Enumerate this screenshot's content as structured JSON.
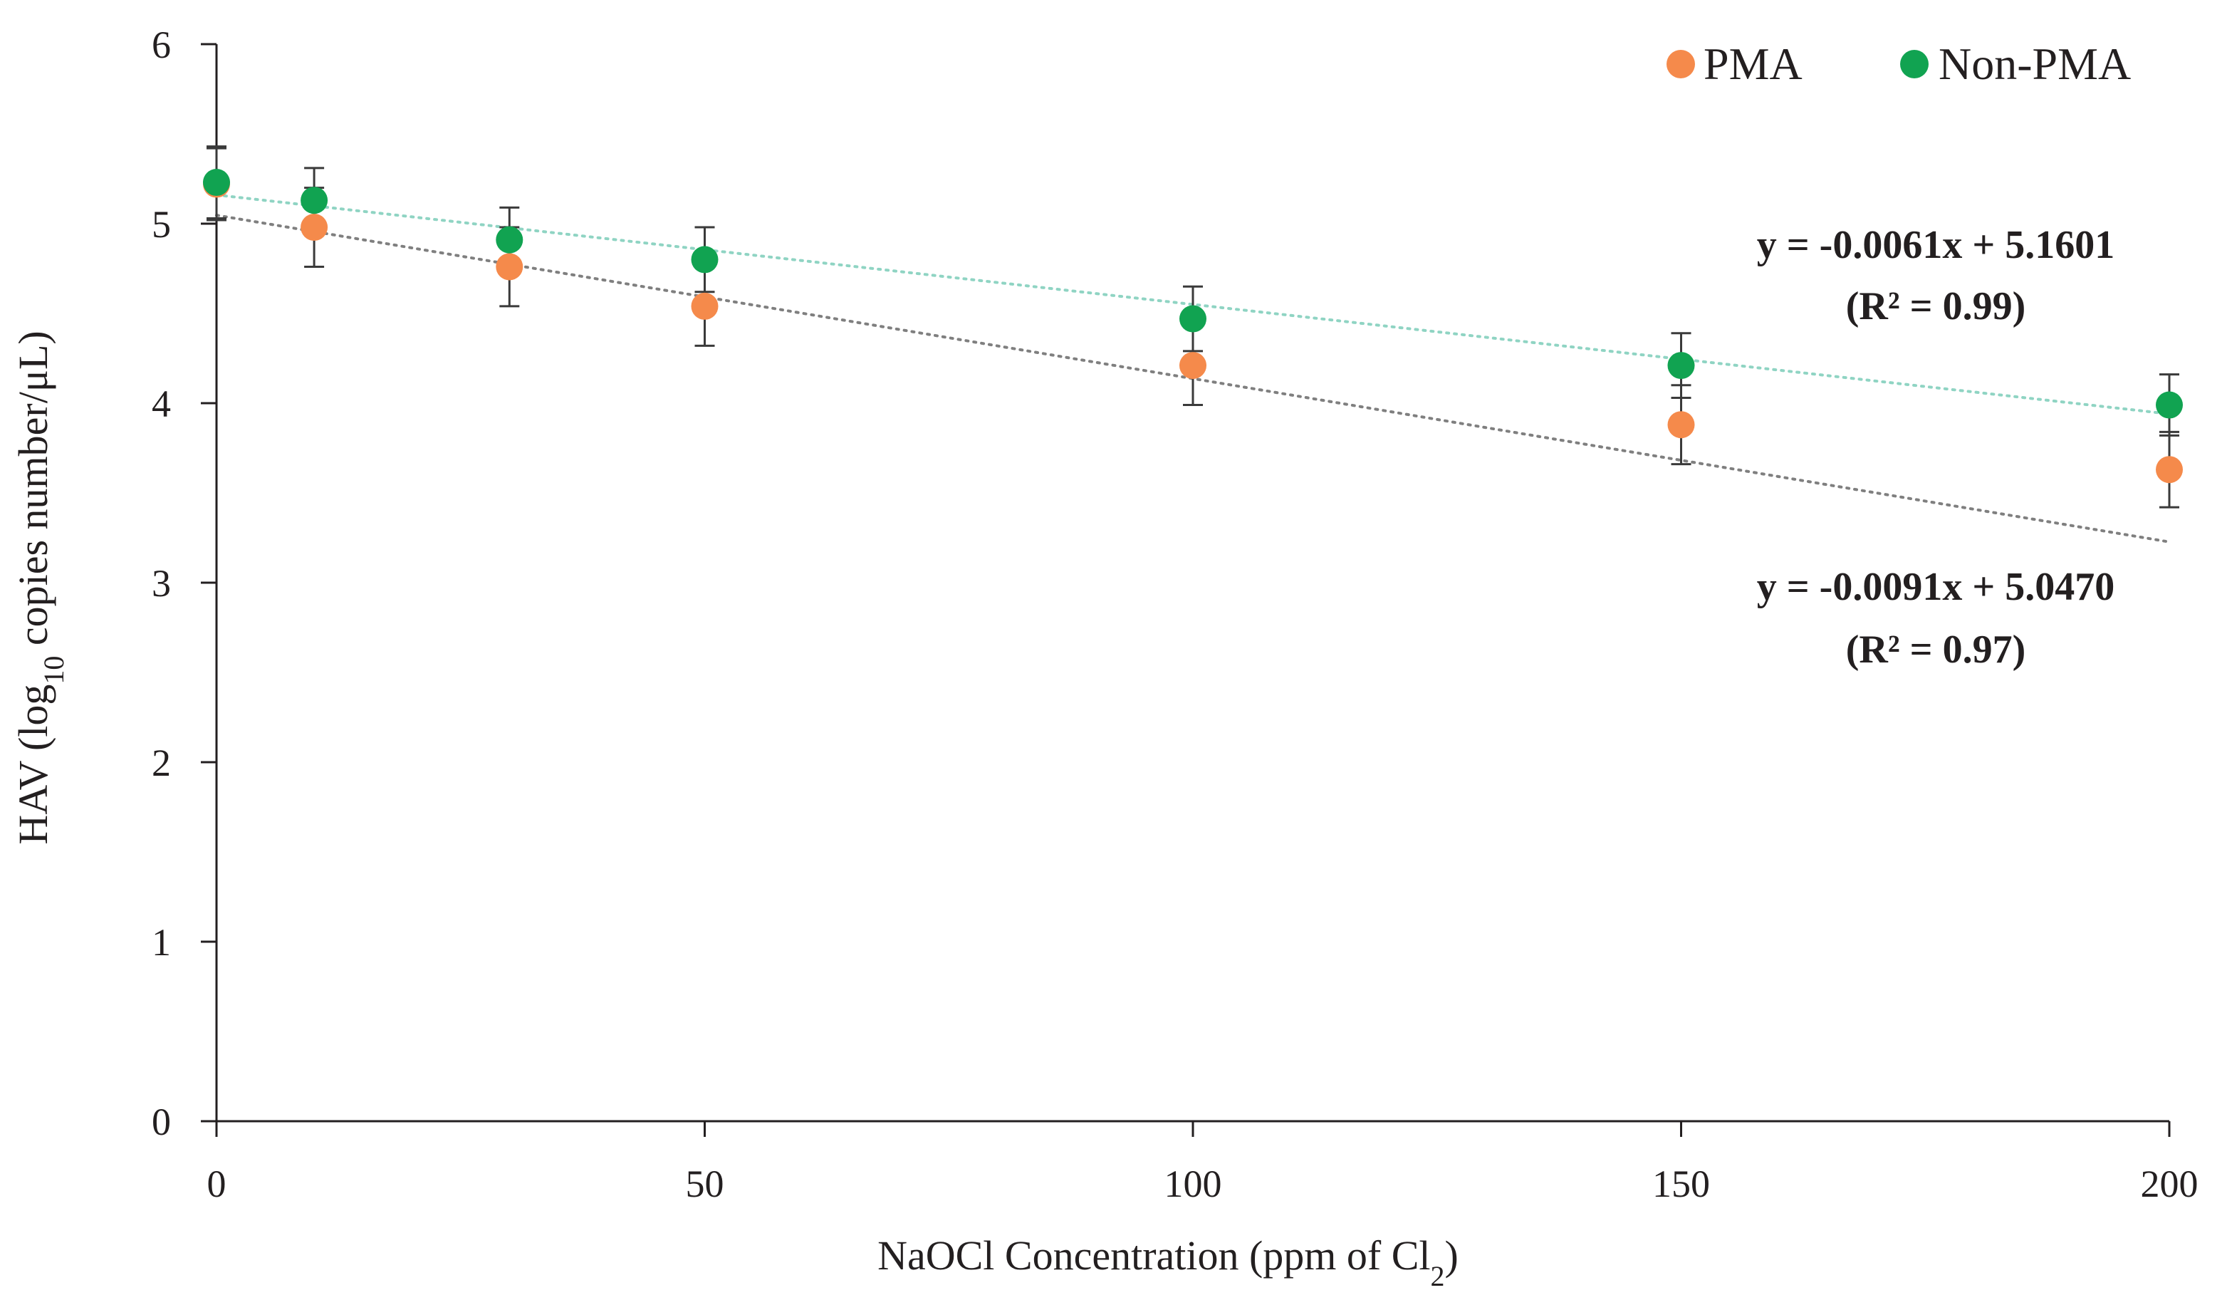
{
  "chart_data": {
    "type": "scatter",
    "title": "",
    "xlabel": {
      "main": "NaOCl Concentration (ppm of Cl",
      "sub": "2",
      "end": ")"
    },
    "ylabel": {
      "main": "HAV (log",
      "sub": "10",
      "rest": " copies  number/μL)"
    },
    "xlim": [
      0,
      200
    ],
    "ylim": [
      0,
      6
    ],
    "x_ticks": [
      0,
      50,
      100,
      150,
      200
    ],
    "y_ticks": [
      0,
      1,
      2,
      3,
      4,
      5,
      6
    ],
    "x": [
      0,
      10,
      30,
      50,
      100,
      150,
      200
    ],
    "legend_position": "top-right",
    "series": [
      {
        "name": "PMA",
        "color": "#f58a4b",
        "values": [
          5.22,
          4.98,
          4.76,
          4.54,
          4.21,
          3.88,
          3.63
        ],
        "errors": [
          0.2,
          0.22,
          0.22,
          0.22,
          0.22,
          0.22,
          0.21
        ],
        "trend": {
          "slope": -0.0091,
          "intercept": 5.047,
          "color": "#7f7f7f"
        },
        "equation": "y = -0.0091x + 5.0470",
        "r2": "(R² = 0.97)"
      },
      {
        "name": "Non-PMA",
        "color": "#11a351",
        "values": [
          5.23,
          5.13,
          4.91,
          4.8,
          4.47,
          4.21,
          3.99
        ],
        "errors": [
          0.2,
          0.18,
          0.18,
          0.18,
          0.18,
          0.18,
          0.17
        ],
        "trend": {
          "slope": -0.0061,
          "intercept": 5.1601,
          "color": "#8fd4c3"
        },
        "equation": "y = -0.0061x + 5.1601",
        "r2": "(R² = 0.99)"
      }
    ]
  }
}
